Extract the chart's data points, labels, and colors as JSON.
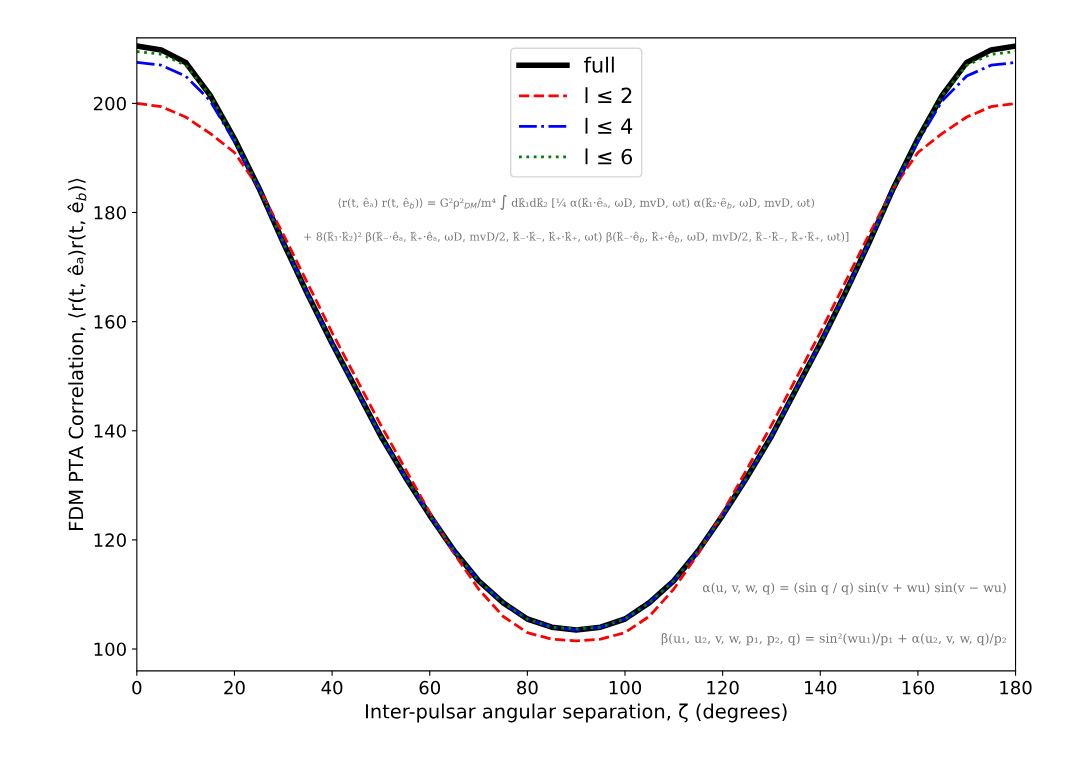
{
  "chart_data": {
    "type": "line",
    "xlabel": "Inter-pulsar angular separation, ζ (degrees)",
    "ylabel": "FDM PTA Correlation, ⟨r(t, êₐ)r(t, ê$_{b}$)⟩",
    "x": [
      0,
      5,
      10,
      15,
      20,
      25,
      30,
      35,
      40,
      45,
      50,
      55,
      60,
      65,
      70,
      75,
      80,
      85,
      90,
      95,
      100,
      105,
      110,
      115,
      120,
      125,
      130,
      135,
      140,
      145,
      150,
      155,
      160,
      165,
      170,
      175,
      180
    ],
    "series": [
      {
        "name": "full",
        "color": "#000000",
        "line_style": "solid",
        "values": [
          210.5,
          209.8,
          207.5,
          201.5,
          193.5,
          184.5,
          174.5,
          165,
          156,
          147.5,
          139,
          131.5,
          124.5,
          118,
          112.5,
          108.5,
          105.5,
          104,
          103.5,
          104,
          105.5,
          108.5,
          112.5,
          118,
          124.5,
          131.5,
          139,
          147.5,
          156,
          165,
          174.5,
          184.5,
          193.5,
          201.5,
          207.5,
          209.8,
          210.5
        ]
      },
      {
        "name": "l ≤ 2",
        "color": "#ff0000",
        "line_style": "dashed",
        "values": [
          200,
          199.4,
          197.5,
          194.5,
          191,
          184.5,
          176,
          167,
          158,
          149.5,
          141,
          133,
          125,
          117.5,
          111,
          106,
          103,
          101.8,
          101.5,
          101.8,
          103,
          106,
          111,
          117.5,
          125,
          133,
          141,
          149.5,
          158,
          167,
          176,
          184.5,
          191,
          194.5,
          197.5,
          199.4,
          200
        ]
      },
      {
        "name": "l ≤ 4",
        "color": "#0000ff",
        "line_style": "dashdot",
        "values": [
          207.5,
          207,
          205,
          200.5,
          193,
          184.5,
          174.5,
          165,
          156,
          147.5,
          139,
          131.5,
          124.5,
          118,
          112.5,
          108.5,
          105.5,
          104,
          103.5,
          104,
          105.5,
          108.5,
          112.5,
          118,
          124.5,
          131.5,
          139,
          147.5,
          156,
          165,
          174.5,
          184.5,
          193,
          200.5,
          205,
          207,
          207.5
        ]
      },
      {
        "name": "l ≤ 6",
        "color": "#008000",
        "line_style": "dotted",
        "values": [
          209.5,
          209,
          207,
          201.5,
          193.5,
          184.5,
          174.5,
          165,
          156,
          147.5,
          139,
          131.5,
          124.5,
          118,
          112.5,
          108.5,
          105.5,
          104,
          103.7,
          104,
          105.5,
          108.5,
          112.5,
          118,
          124.5,
          131.5,
          139,
          147.5,
          156,
          165,
          174.5,
          184.5,
          193.5,
          201.5,
          207,
          209,
          209.5
        ]
      }
    ],
    "xlim": [
      0,
      180
    ],
    "xticks": [
      0,
      20,
      40,
      60,
      80,
      100,
      120,
      140,
      160,
      180
    ],
    "ylim": [
      96,
      212
    ],
    "yticks": [
      100,
      120,
      140,
      160,
      180,
      200
    ],
    "legend": "top",
    "grid": false,
    "marker": "none",
    "annotations": [
      "⟨r(t, êₐ) r(t, ê$_{b}$)⟩ = G²ρ²$_{DM}$/m⁴ ∫ dk̂₁dk̂₂ [¼ α(k̂₁·êₐ, ωD, mvD, ωt) α(k̂₂·ê$_{b}$, ωD, mvD, ωt)",
      "+ 8(k̂₁·k̂₂)² β(k̂₋·êₐ, k̂₊·êₐ, ωD, mvD/2, k̂₋·k̂₋, k̂₊·k̂₊, ωt) β(k̂₋·ê$_{b}$, k̂₊·ê$_{b}$, ωD, mvD/2, k̂₋·k̂₋, k̂₊·k̂₊, ωt)]",
      "α(u, v, w, q) = (sin q / q) sin(v + wu) sin(v − wu)",
      "β(u₁, u₂, v, w, p₁, p₂, q) = sin²(wu₁)/p₁ + α(u₂, v, w, q)/p₂"
    ]
  }
}
